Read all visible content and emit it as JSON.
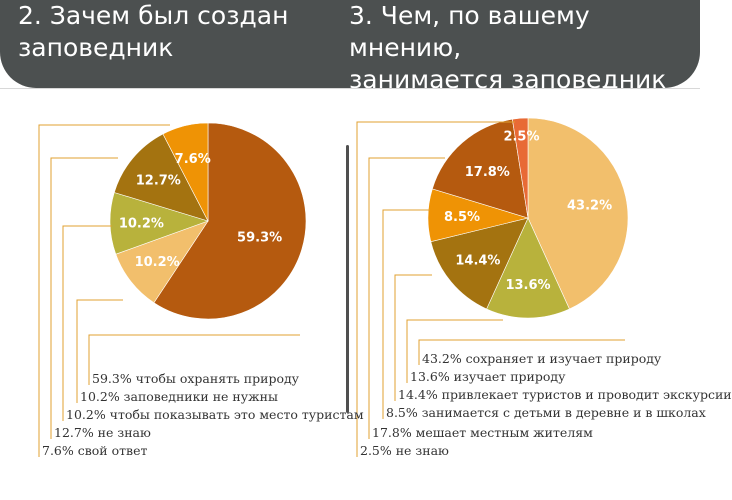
{
  "titles": {
    "q2": "2. Зачем был создан\nзаповедник",
    "q3": "3. Чем, по вашему мнению,\nзанимается заповедник"
  },
  "colors": {
    "header": "#4c5050",
    "leader": "#e0a030",
    "label": "#ffffff"
  },
  "chart_data": [
    {
      "type": "pie",
      "title": "2. Зачем был создан заповедник",
      "slices": [
        {
          "label": "59.3%",
          "value": 59.3,
          "color": "#b55a0f",
          "legend": "59.3% чтобы охранять природу"
        },
        {
          "label": "10.2%",
          "value": 10.2,
          "color": "#f2bf6c",
          "legend": "10.2% заповедники не нужны"
        },
        {
          "label": "10.2%",
          "value": 10.2,
          "color": "#b8b23c",
          "legend": "10.2% чтобы показывать это место туристам"
        },
        {
          "label": "12.7%",
          "value": 12.7,
          "color": "#a47310",
          "legend": "12.7% не знаю"
        },
        {
          "label": "7.6%",
          "value": 7.6,
          "color": "#ef9305",
          "legend": "7.6% свой ответ"
        }
      ]
    },
    {
      "type": "pie",
      "title": "3. Чем, по вашему мнению, занимается заповедник",
      "slices": [
        {
          "label": "43.2%",
          "value": 43.2,
          "color": "#f2bf6c",
          "legend": "43.2% сохраняет и изучает природу"
        },
        {
          "label": "13.6%",
          "value": 13.6,
          "color": "#b8b23c",
          "legend": "13.6% изучает природу"
        },
        {
          "label": "14.4%",
          "value": 14.4,
          "color": "#a47310",
          "legend": "14.4% привлекает туристов и проводит экскурсии"
        },
        {
          "label": "8.5%",
          "value": 8.5,
          "color": "#ef9305",
          "legend": "8.5% занимается с детьми в деревне и в школах"
        },
        {
          "label": "17.8%",
          "value": 17.8,
          "color": "#b55a0f",
          "legend": "17.8% мешает местным жителям"
        },
        {
          "label": "2.5%",
          "value": 2.5,
          "color": "#e86a35",
          "legend": "2.5% не знаю"
        }
      ]
    }
  ]
}
